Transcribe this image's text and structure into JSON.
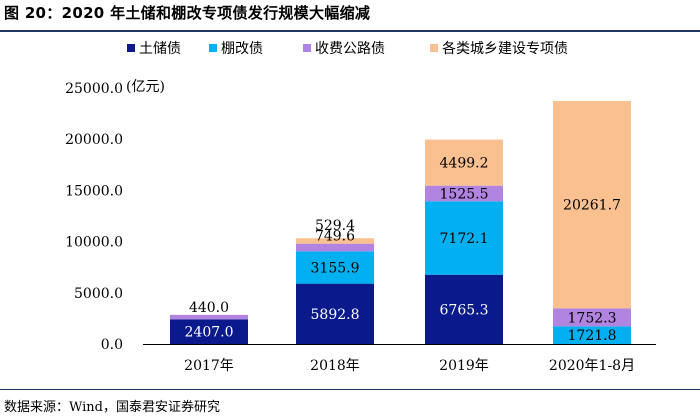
{
  "header": {
    "title": "图 20：2020 年土储和棚改专项债发行规模大幅缩减"
  },
  "footer": {
    "source": "数据来源：Wind，国泰君安证券研究"
  },
  "colors": {
    "土储债": "#0a1a8c",
    "棚改债": "#00b0f0",
    "收费公路债": "#b084e0",
    "各类城乡建设专项债": "#fac090",
    "rule": "#1f3864"
  },
  "chart_data": {
    "type": "bar",
    "stacked": true,
    "categories": [
      "2017年",
      "2018年",
      "2019年",
      "2020年1-8月"
    ],
    "unit_label": "(亿元)",
    "ylim": [
      0,
      25000
    ],
    "yticks": [
      "0.0",
      "5000.0",
      "10000.0",
      "15000.0",
      "20000.0",
      "25000.0"
    ],
    "ytick_values": [
      0,
      5000,
      10000,
      15000,
      20000,
      25000
    ],
    "series": [
      {
        "name": "土储债",
        "values": [
          2407.0,
          5892.8,
          6765.3,
          0
        ],
        "labels": [
          "2407.0",
          "5892.8",
          "6765.3",
          ""
        ]
      },
      {
        "name": "棚改债",
        "values": [
          0,
          3155.9,
          7172.1,
          1721.8
        ],
        "labels": [
          "",
          "3155.9",
          "7172.1",
          "1721.8"
        ]
      },
      {
        "name": "收费公路债",
        "values": [
          440.0,
          749.6,
          1525.5,
          1752.3
        ],
        "labels": [
          "440.0",
          "749.6",
          "1525.5",
          "1752.3"
        ]
      },
      {
        "name": "各类城乡建设专项债",
        "values": [
          0,
          529.4,
          4499.2,
          20261.7
        ],
        "labels": [
          "",
          "529.4",
          "4499.2",
          "20261.7"
        ]
      }
    ],
    "legend_position": "top"
  }
}
